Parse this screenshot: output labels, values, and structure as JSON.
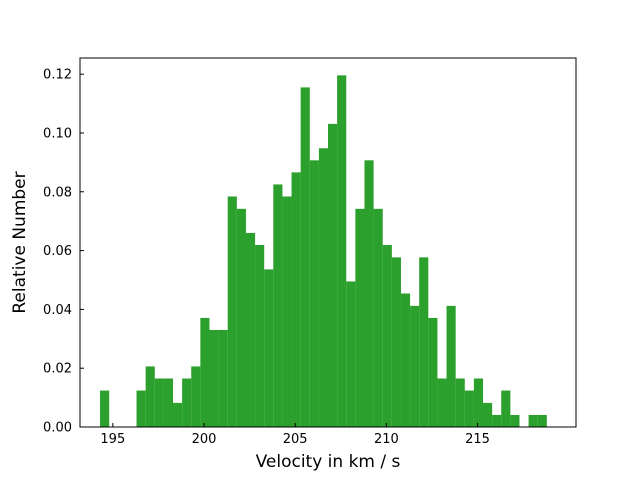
{
  "chart_data": {
    "type": "bar",
    "title": "",
    "xlabel": "Velocity in km / s",
    "ylabel": "Relative Number",
    "xlim": [
      193.2,
      220.4
    ],
    "ylim": [
      0,
      0.1255
    ],
    "bin_width": 0.485,
    "bar_color": "#2ca02c",
    "grid": false,
    "x_ticks": [
      195,
      200,
      205,
      210,
      215
    ],
    "x_tick_labels": [
      "195",
      "200",
      "205",
      "210",
      "215"
    ],
    "y_ticks": [
      0,
      0.02,
      0.04,
      0.06,
      0.08,
      0.1,
      0.12
    ],
    "y_tick_labels": [
      "0.00",
      "0.02",
      "0.04",
      "0.06",
      "0.08",
      "0.10",
      "0.12"
    ],
    "bins_start": [
      194.3,
      194.8,
      195.3,
      195.8,
      196.3,
      196.8,
      197.3,
      197.8,
      198.3,
      198.8,
      199.3,
      199.8,
      200.3,
      200.8,
      201.3,
      201.8,
      202.3,
      202.8,
      203.3,
      203.8,
      204.3,
      204.8,
      205.3,
      205.8,
      206.3,
      206.8,
      207.3,
      207.8,
      208.3,
      208.8,
      209.3,
      209.8,
      210.3,
      210.8,
      211.3,
      211.8,
      212.3,
      212.8,
      213.3,
      213.8,
      214.3,
      214.8,
      215.3,
      215.8,
      216.3,
      216.8,
      217.3,
      217.8,
      218.3
    ],
    "values": [
      0.0124,
      0,
      0,
      0,
      0.0124,
      0.0206,
      0.0165,
      0.0165,
      0.0082,
      0.0165,
      0.0206,
      0.0371,
      0.033,
      0.033,
      0.0784,
      0.0742,
      0.066,
      0.0619,
      0.0536,
      0.0825,
      0.0784,
      0.0866,
      0.1155,
      0.0907,
      0.0948,
      0.1031,
      0.1196,
      0.0495,
      0.0742,
      0.0907,
      0.0742,
      0.0619,
      0.0577,
      0.0454,
      0.0412,
      0.0577,
      0.0371,
      0.0165,
      0.0412,
      0.0165,
      0.0124,
      0.0165,
      0.0082,
      0.0041,
      0.0124,
      0.0041,
      0,
      0.0041,
      0.0041
    ]
  }
}
